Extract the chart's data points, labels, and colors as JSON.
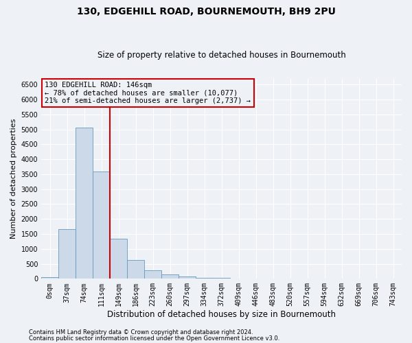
{
  "title": "130, EDGEHILL ROAD, BOURNEMOUTH, BH9 2PU",
  "subtitle": "Size of property relative to detached houses in Bournemouth",
  "xlabel": "Distribution of detached houses by size in Bournemouth",
  "ylabel": "Number of detached properties",
  "footnote1": "Contains HM Land Registry data © Crown copyright and database right 2024.",
  "footnote2": "Contains public sector information licensed under the Open Government Licence v3.0.",
  "annotation_line1": "130 EDGEHILL ROAD: 146sqm",
  "annotation_line2": "← 78% of detached houses are smaller (10,077)",
  "annotation_line3": "21% of semi-detached houses are larger (2,737) →",
  "bar_color": "#ccd9e8",
  "bar_edge_color": "#6699bb",
  "vline_color": "#cc0000",
  "categories": [
    "0sqm",
    "37sqm",
    "74sqm",
    "111sqm",
    "149sqm",
    "186sqm",
    "223sqm",
    "260sqm",
    "297sqm",
    "334sqm",
    "372sqm",
    "409sqm",
    "446sqm",
    "483sqm",
    "520sqm",
    "557sqm",
    "594sqm",
    "632sqm",
    "669sqm",
    "706sqm",
    "743sqm"
  ],
  "values": [
    50,
    1650,
    5050,
    3600,
    1350,
    620,
    290,
    135,
    75,
    40,
    20,
    10,
    5,
    0,
    0,
    0,
    0,
    0,
    0,
    0,
    0
  ],
  "ylim": [
    0,
    6700
  ],
  "yticks": [
    0,
    500,
    1000,
    1500,
    2000,
    2500,
    3000,
    3500,
    4000,
    4500,
    5000,
    5500,
    6000,
    6500
  ],
  "vline_bar_index": 4,
  "background_color": "#eef2f7",
  "grid_color": "#ffffff",
  "title_fontsize": 10,
  "subtitle_fontsize": 8.5,
  "ylabel_fontsize": 8,
  "xlabel_fontsize": 8.5,
  "tick_fontsize": 7,
  "annot_fontsize": 7.5,
  "footnote_fontsize": 6
}
